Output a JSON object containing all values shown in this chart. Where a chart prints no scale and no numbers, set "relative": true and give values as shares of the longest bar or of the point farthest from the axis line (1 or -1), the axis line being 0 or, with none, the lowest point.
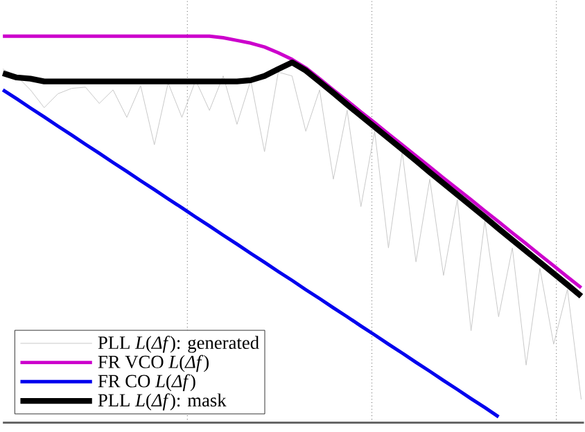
{
  "chart_data": {
    "type": "line",
    "relative": true,
    "grid": true,
    "legend": "bottom left",
    "marker": "none",
    "line_style": "solid",
    "categories": [
      null,
      null,
      null,
      null,
      null,
      null,
      null,
      null,
      null,
      null,
      null,
      null,
      null,
      null,
      null,
      null,
      null,
      null,
      null,
      null,
      null,
      null,
      null,
      null,
      null,
      null,
      null,
      null,
      null,
      null,
      null,
      null,
      null,
      null,
      null,
      null,
      null,
      null,
      null,
      null,
      null,
      null,
      null
    ],
    "series": [
      {
        "name": "PLL *L*(*Δf*): generated",
        "color": "#c8c8c8",
        "values": [
          0.915,
          0.897,
          0.861,
          0.815,
          0.851,
          0.865,
          0.868,
          0.826,
          0.861,
          0.79,
          0.872,
          0.719,
          0.879,
          0.79,
          0.886,
          0.808,
          0.897,
          0.772,
          0.886,
          0.701,
          0.907,
          0.897,
          0.754,
          0.861,
          0.63,
          0.808,
          0.559,
          0.754,
          0.452,
          0.701,
          0.416,
          0.63,
          0.381,
          0.577,
          0.238,
          0.523,
          0.274,
          0.452,
          0.149,
          0.399,
          0.203,
          0.345,
          0.06
        ]
      },
      {
        "name": "FR VCO *L*(*Δf*)",
        "color": "#cc00cc",
        "values": [
          1.0,
          1.0,
          1.0,
          1.0,
          1.0,
          1.0,
          1.0,
          1.0,
          1.0,
          1.0,
          1.0,
          1.0,
          1.0,
          1.0,
          1.0,
          1.0,
          0.996,
          0.989,
          0.982,
          0.972,
          0.957,
          0.94,
          0.918,
          0.89,
          0.861,
          0.833,
          0.804,
          0.776,
          0.747,
          0.719,
          0.69,
          0.662,
          0.633,
          0.605,
          0.577,
          0.548,
          0.52,
          0.491,
          0.463,
          0.434,
          0.406,
          0.377,
          0.349
        ]
      },
      {
        "name": "FR CO *L*(*Δf*)",
        "color": "#0000ee",
        "values": [
          0.861,
          0.838,
          0.814,
          0.791,
          0.767,
          0.744,
          0.72,
          0.697,
          0.673,
          0.65,
          0.626,
          0.603,
          0.579,
          0.556,
          0.532,
          0.509,
          0.485,
          0.462,
          0.438,
          0.415,
          0.391,
          0.368,
          0.344,
          0.321,
          0.297,
          0.274,
          0.25,
          0.227,
          0.203,
          0.18,
          0.156,
          0.133,
          0.109,
          0.086,
          0.062,
          0.039,
          0.015,
          null,
          null,
          null,
          null,
          null,
          null
        ]
      },
      {
        "name": "PLL *L*(*Δf*): mask",
        "color": "#000000",
        "values": [
          0.904,
          0.893,
          0.89,
          0.883,
          0.883,
          0.883,
          0.883,
          0.883,
          0.883,
          0.883,
          0.883,
          0.883,
          0.883,
          0.883,
          0.883,
          0.883,
          0.883,
          0.883,
          0.886,
          0.897,
          0.915,
          0.932,
          0.911,
          0.882,
          0.853,
          0.823,
          0.794,
          0.765,
          0.736,
          0.707,
          0.678,
          0.648,
          0.619,
          0.59,
          0.561,
          0.532,
          0.502,
          0.473,
          0.444,
          0.415,
          0.386,
          0.357,
          0.327
        ]
      }
    ]
  }
}
